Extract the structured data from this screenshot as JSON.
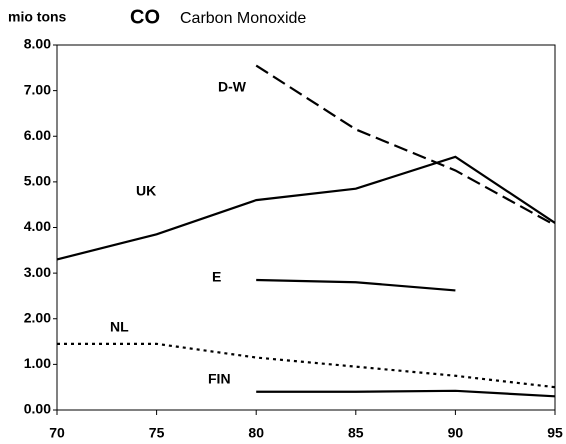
{
  "chart_data": {
    "type": "line",
    "title": "CO",
    "subtitle": "Carbon Monoxide",
    "y_label": "mio tons",
    "x": [
      70,
      75,
      80,
      85,
      90,
      95
    ],
    "series": [
      {
        "name": "D-W",
        "color": "#000000",
        "dash": "dashed",
        "values": [
          null,
          null,
          7.55,
          6.15,
          5.25,
          4.05
        ]
      },
      {
        "name": "UK",
        "color": "#000000",
        "dash": "solid",
        "values": [
          3.3,
          3.85,
          4.6,
          4.85,
          5.55,
          4.1
        ]
      },
      {
        "name": "E",
        "color": "#000000",
        "dash": "solid",
        "values": [
          null,
          null,
          2.85,
          2.8,
          2.62,
          null
        ]
      },
      {
        "name": "NL",
        "color": "#000000",
        "dash": "dotted",
        "values": [
          1.45,
          1.45,
          1.15,
          0.95,
          0.75,
          0.5
        ]
      },
      {
        "name": "FIN",
        "color": "#000000",
        "dash": "solid",
        "values": [
          null,
          null,
          0.4,
          0.4,
          0.42,
          0.3
        ]
      }
    ],
    "xlim": [
      70,
      95
    ],
    "xticks": [
      70,
      75,
      80,
      85,
      90,
      95
    ],
    "ylim": [
      0,
      8
    ],
    "yticks": [
      {
        "value": 0,
        "label": "0.00"
      },
      {
        "value": 1,
        "label": "1.00"
      },
      {
        "value": 2,
        "label": "2.00"
      },
      {
        "value": 3,
        "label": "3.00"
      },
      {
        "value": 4,
        "label": "4.00"
      },
      {
        "value": 5,
        "label": "5.00"
      },
      {
        "value": 6,
        "label": "6.00"
      },
      {
        "value": 7,
        "label": "7.00"
      },
      {
        "value": 8,
        "label": "8.00"
      }
    ]
  }
}
